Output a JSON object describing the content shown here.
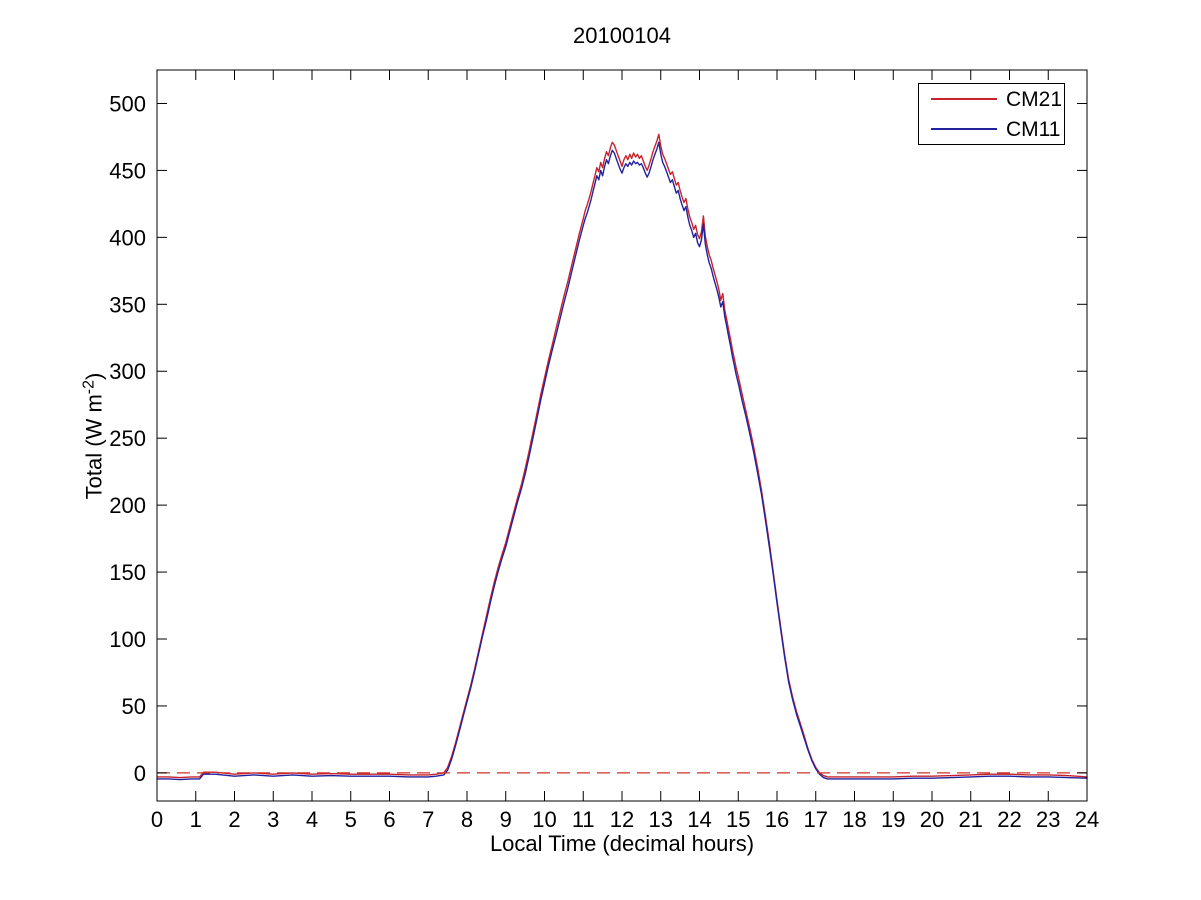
{
  "figure": {
    "title": "20100104",
    "xlabel": "Local Time (decimal hours)",
    "ylabel_prefix": "Total (W m",
    "ylabel_superscript": "-2",
    "ylabel_suffix": ")",
    "background_color": "#ffffff"
  },
  "legend": {
    "position": "top-right",
    "entries": [
      {
        "label": "CM21",
        "color": "#c8232d"
      },
      {
        "label": "CM11",
        "color": "#22229e"
      }
    ]
  },
  "chart_data": {
    "type": "line",
    "title": "20100104",
    "xlabel": "Local Time (decimal hours)",
    "ylabel": "Total (W m^-2)",
    "xlim": [
      0,
      24
    ],
    "ylim": [
      -21,
      525
    ],
    "xticks": [
      0,
      1,
      2,
      3,
      4,
      5,
      6,
      7,
      8,
      9,
      10,
      11,
      12,
      13,
      14,
      15,
      16,
      17,
      18,
      19,
      20,
      21,
      22,
      23,
      24
    ],
    "yticks": [
      0,
      50,
      100,
      150,
      200,
      250,
      300,
      350,
      400,
      450,
      500
    ],
    "grid": false,
    "legend_position": "top-right",
    "zero_line": {
      "y": 0,
      "style": "dashed",
      "color": "#d03028"
    },
    "x": [
      0,
      0.3,
      0.6,
      0.9,
      1.1,
      1.2,
      1.5,
      2,
      2.5,
      3,
      3.5,
      4,
      4.5,
      5,
      5.5,
      6,
      6.5,
      7,
      7.2,
      7.4,
      7.5,
      7.6,
      7.7,
      7.8,
      7.9,
      8,
      8.1,
      8.2,
      8.3,
      8.4,
      8.5,
      8.6,
      8.7,
      8.8,
      8.9,
      9,
      9.1,
      9.2,
      9.3,
      9.4,
      9.5,
      9.6,
      9.7,
      9.8,
      9.9,
      10,
      10.1,
      10.2,
      10.3,
      10.4,
      10.5,
      10.6,
      10.7,
      10.8,
      10.9,
      11,
      11.05,
      11.1,
      11.15,
      11.2,
      11.25,
      11.3,
      11.35,
      11.4,
      11.45,
      11.5,
      11.55,
      11.6,
      11.65,
      11.7,
      11.75,
      11.8,
      11.85,
      11.9,
      11.95,
      12,
      12.05,
      12.1,
      12.15,
      12.2,
      12.25,
      12.3,
      12.35,
      12.4,
      12.45,
      12.5,
      12.55,
      12.6,
      12.65,
      12.7,
      12.75,
      12.8,
      12.85,
      12.9,
      12.95,
      13,
      13.05,
      13.1,
      13.15,
      13.2,
      13.25,
      13.3,
      13.35,
      13.4,
      13.45,
      13.5,
      13.55,
      13.6,
      13.65,
      13.7,
      13.75,
      13.8,
      13.85,
      13.9,
      13.95,
      14,
      14.05,
      14.1,
      14.15,
      14.2,
      14.25,
      14.3,
      14.35,
      14.4,
      14.45,
      14.5,
      14.55,
      14.6,
      14.65,
      14.7,
      14.75,
      14.8,
      14.85,
      14.9,
      14.95,
      15,
      15.1,
      15.2,
      15.3,
      15.4,
      15.5,
      15.6,
      15.7,
      15.8,
      15.9,
      16,
      16.1,
      16.2,
      16.3,
      16.4,
      16.5,
      16.6,
      16.7,
      16.8,
      16.9,
      17,
      17.1,
      17.2,
      17.3,
      17.6,
      18,
      18.5,
      19,
      19.5,
      20,
      20.5,
      21,
      21.5,
      22,
      22.5,
      23,
      23.5,
      24
    ],
    "series": [
      {
        "name": "CM21",
        "color": "#c8232d",
        "values": [
          -3,
          -3,
          -3.5,
          -3,
          -3,
          0.5,
          0.5,
          -1,
          0,
          -1,
          0,
          -1,
          -0.5,
          -1,
          -1,
          -1,
          -1.5,
          -1.5,
          -1,
          0,
          4,
          12,
          22,
          33,
          44,
          55,
          66,
          78,
          91,
          104,
          117,
          130,
          142,
          153,
          163,
          172,
          183,
          194,
          205,
          215,
          227,
          240,
          254,
          268,
          282,
          295,
          308,
          320,
          332,
          344,
          356,
          367,
          379,
          391,
          403,
          414,
          420,
          424,
          429,
          434,
          440,
          446,
          452,
          449,
          456,
          452,
          459,
          464,
          461,
          467,
          471,
          469,
          465,
          461,
          457,
          453,
          458,
          461,
          458,
          462,
          459,
          463,
          460,
          462,
          459,
          461,
          457,
          453,
          450,
          454,
          459,
          464,
          468,
          472,
          477,
          468,
          462,
          459,
          455,
          451,
          447,
          449,
          444,
          439,
          441,
          435,
          430,
          426,
          429,
          421,
          415,
          411,
          406,
          409,
          402,
          399,
          404,
          416,
          401,
          393,
          387,
          383,
          377,
          372,
          367,
          361,
          353,
          358,
          346,
          339,
          331,
          324,
          316,
          309,
          302,
          296,
          283,
          270,
          257,
          243,
          228,
          211,
          192,
          172,
          151,
          129,
          108,
          88,
          70,
          57,
          46,
          37,
          28,
          18,
          10,
          4,
          0,
          -2,
          -3,
          -3,
          -3,
          -3,
          -3,
          -2.5,
          -2.5,
          -2,
          -1.5,
          -1,
          -1,
          -1.5,
          -1.5,
          -2,
          -3
        ]
      },
      {
        "name": "CM11",
        "color": "#22229e",
        "values": [
          -4.5,
          -4.5,
          -5,
          -4.5,
          -4.5,
          -1,
          -1,
          -2.5,
          -1.5,
          -2.5,
          -1.5,
          -2.5,
          -2,
          -2.5,
          -2.5,
          -2.5,
          -3,
          -3,
          -2.5,
          -1.5,
          2,
          10,
          20,
          31,
          42,
          53,
          64,
          76,
          89,
          102,
          114,
          127,
          139,
          150,
          160,
          169,
          180,
          191,
          202,
          212,
          223,
          236,
          250,
          264,
          278,
          291,
          304,
          316,
          327,
          339,
          351,
          362,
          374,
          386,
          398,
          409,
          414,
          418,
          423,
          428,
          434,
          440,
          446,
          443,
          450,
          446,
          453,
          458,
          455,
          461,
          465,
          463,
          459,
          455,
          451,
          448,
          452,
          455,
          453,
          456,
          454,
          457,
          455,
          456,
          454,
          455,
          452,
          448,
          445,
          448,
          453,
          458,
          462,
          466,
          471,
          462,
          456,
          453,
          449,
          445,
          441,
          443,
          438,
          433,
          435,
          429,
          424,
          420,
          423,
          415,
          409,
          405,
          400,
          403,
          396,
          393,
          398,
          410,
          395,
          387,
          381,
          377,
          371,
          366,
          361,
          355,
          348,
          352,
          341,
          334,
          326,
          319,
          311,
          304,
          297,
          291,
          278,
          266,
          253,
          239,
          224,
          208,
          189,
          169,
          149,
          127,
          106,
          86,
          68,
          55,
          44,
          35,
          26,
          17,
          9,
          3,
          -1,
          -3.5,
          -4.5,
          -4.5,
          -4.5,
          -4.5,
          -4.5,
          -4,
          -4,
          -3.5,
          -3,
          -2.5,
          -2.5,
          -3,
          -3,
          -3.5,
          -4
        ]
      }
    ]
  }
}
